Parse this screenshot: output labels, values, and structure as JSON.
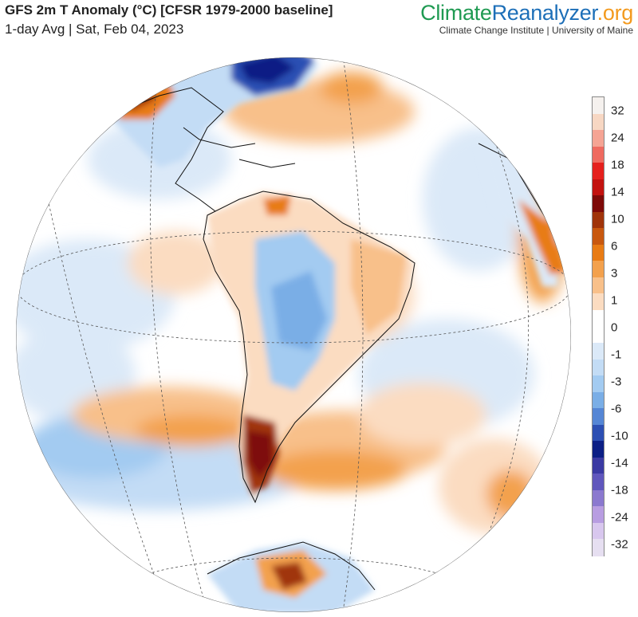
{
  "header": {
    "title": "GFS 2m T Anomaly (°C) [CFSR 1979-2000 baseline]",
    "subtitle": "1-day Avg | Sat, Feb 04, 2023"
  },
  "brand": {
    "logo_part1": "Climate",
    "logo_part2": "Reanalyzer",
    "logo_part3": ".org",
    "tagline": "Climate Change Institute | University of Maine",
    "colors": {
      "part1": "#1f9a52",
      "part2": "#1d6fb8",
      "part3": "#f39a1e"
    }
  },
  "legend": {
    "colors": [
      "#f5f1ee",
      "#f7d7c3",
      "#f5a494",
      "#ef6a60",
      "#e5201d",
      "#c3120f",
      "#7e0a08",
      "#a0340a",
      "#c8580f",
      "#e87b14",
      "#f3a14d",
      "#f8c08a",
      "#fbdcc1",
      "#ffffff",
      "#ffffff",
      "#dbe9f8",
      "#c3dcf5",
      "#a3cbf1",
      "#7aaee6",
      "#5586d5",
      "#2c4fb3",
      "#0c1f85",
      "#3b3aa3",
      "#6057bd",
      "#8b79cf",
      "#b89de1",
      "#d8c7ee",
      "#e6dff1"
    ],
    "labels": [
      "32",
      "24",
      "18",
      "14",
      "10",
      "6",
      "3",
      "1",
      "0",
      "-1",
      "-3",
      "-6",
      "-10",
      "-14",
      "-18",
      "-24",
      "-32"
    ]
  },
  "map": {
    "icon": "orthographic-globe-icon",
    "ocean_color": "#ffffff",
    "warm_colors": [
      "#fbdcc1",
      "#f8c08a",
      "#f3a14d",
      "#e87b14",
      "#a0340a",
      "#7e0a08"
    ],
    "cold_colors": [
      "#dbe9f8",
      "#c3dcf5",
      "#a3cbf1",
      "#7aaee6",
      "#2c4fb3",
      "#0c1f85"
    ]
  }
}
